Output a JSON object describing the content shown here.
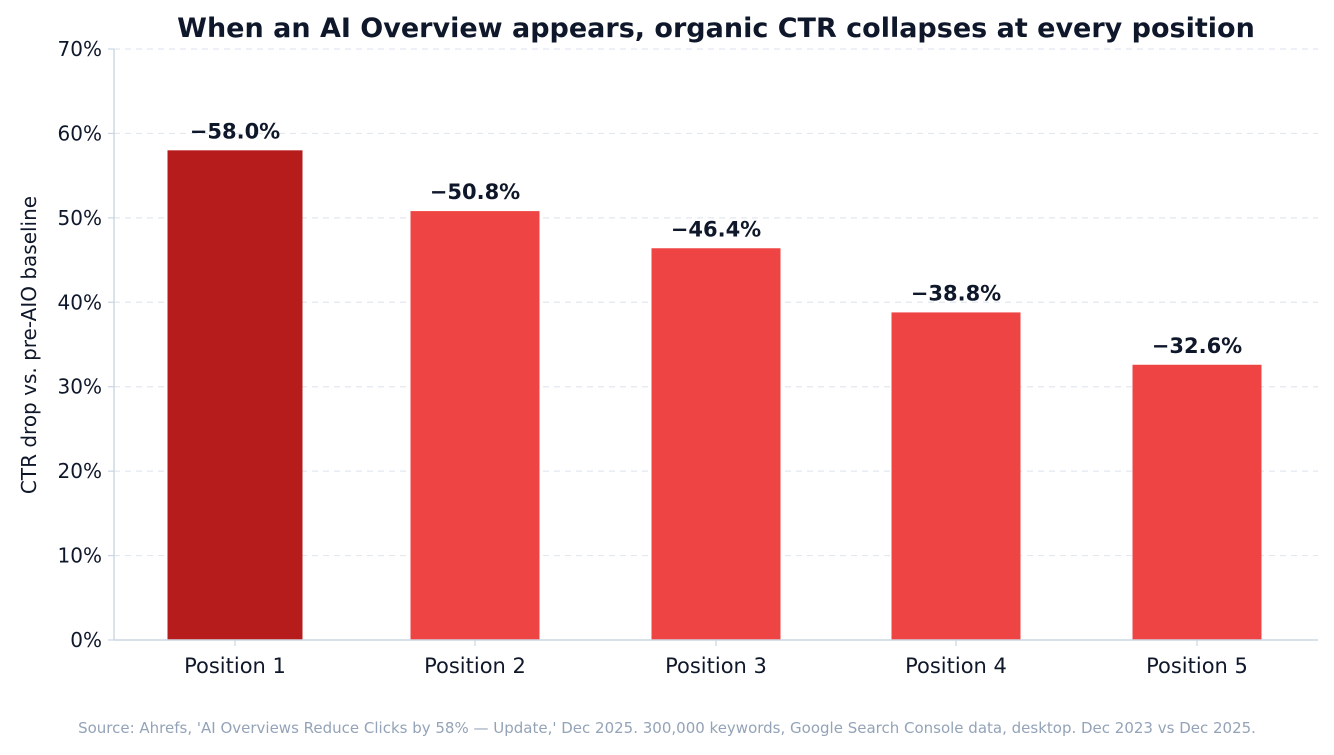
{
  "chart_data": {
    "type": "bar",
    "title": "When an AI Overview appears, organic CTR collapses at every position",
    "xlabel": "",
    "ylabel": "CTR drop vs. pre-AIO baseline",
    "categories": [
      "Position 1",
      "Position 2",
      "Position 3",
      "Position 4",
      "Position 5"
    ],
    "values": [
      58.0,
      50.8,
      46.4,
      38.8,
      32.6
    ],
    "data_labels": [
      "−58.0%",
      "−50.8%",
      "−46.4%",
      "−38.8%",
      "−32.6%"
    ],
    "ylim": [
      0,
      70
    ],
    "yticks": [
      0,
      10,
      20,
      30,
      40,
      50,
      60,
      70
    ],
    "ytick_labels": [
      "0%",
      "10%",
      "20%",
      "30%",
      "40%",
      "50%",
      "60%",
      "70%"
    ],
    "grid": "horizontal dashed",
    "colors": {
      "highlight": "#b71c1c",
      "bar": "#ef4444",
      "title": "#0f172a",
      "text": "#0f172a",
      "grid": "#e2e8f0",
      "axis": "#cbd5e1",
      "source": "#94a3b8"
    },
    "bar_colors": [
      "#b71c1c",
      "#ef4444",
      "#ef4444",
      "#ef4444",
      "#ef4444"
    ],
    "source": "Source: Ahrefs, 'AI Overviews Reduce Clicks by 58% — Update,' Dec 2025. 300,000 keywords, Google Search Console data, desktop. Dec 2023 vs Dec 2025."
  }
}
